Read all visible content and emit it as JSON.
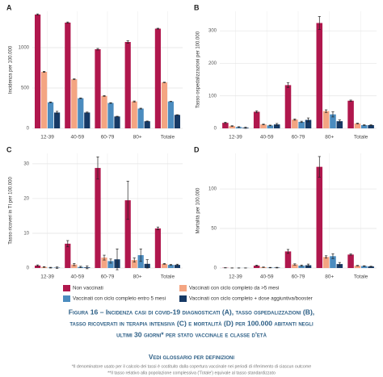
{
  "chart_data": [
    {
      "type": "bar",
      "title": "A",
      "y_label": "Incidenza per 100.000",
      "categories": [
        "12-39",
        "40-59",
        "60-79",
        "80+",
        "Totale"
      ],
      "ylim": [
        0,
        1450
      ],
      "yticks": [
        0,
        500,
        1000
      ],
      "grid": true,
      "series": [
        {
          "name": "Non vaccinati",
          "color": "#b0174d",
          "values": [
            1410,
            1310,
            980,
            1070,
            1235
          ],
          "errors": [
            8,
            8,
            10,
            15,
            5
          ]
        },
        {
          "name": "Vaccinati con ciclo completo da >5 mesi",
          "color": "#f4a582",
          "values": [
            700,
            608,
            402,
            333,
            569
          ],
          "errors": [
            6,
            5,
            5,
            6,
            3
          ]
        },
        {
          "name": "Vaccinati con ciclo completo entro 5 mesi",
          "color": "#4b8cbf",
          "values": [
            323,
            373,
            314,
            245,
            333
          ],
          "errors": [
            4,
            4,
            4,
            5,
            2
          ]
        },
        {
          "name": "Vaccinati con ciclo completo + dose aggiuntiva/booster",
          "color": "#163a66",
          "values": [
            196,
            196,
            147,
            88,
            167
          ],
          "errors": [
            15,
            6,
            3,
            3,
            2
          ]
        }
      ]
    },
    {
      "type": "bar",
      "title": "B",
      "y_label": "Tasso ospedalizzazioni per 100.000",
      "categories": [
        "12-39",
        "40-59",
        "60-79",
        "80+",
        "Totale"
      ],
      "ylim": [
        0,
        360
      ],
      "yticks": [
        0,
        100,
        200,
        300
      ],
      "grid": true,
      "series": [
        {
          "name": "Non vaccinati",
          "color": "#b0174d",
          "values": [
            17,
            51,
            133,
            324,
            85
          ],
          "errors": [
            2,
            3,
            7,
            20,
            2
          ]
        },
        {
          "name": "Vaccinati con ciclo completo da >5 mesi",
          "color": "#f4a582",
          "values": [
            7,
            12,
            27,
            53,
            15
          ],
          "errors": [
            1,
            1,
            2,
            4,
            1
          ]
        },
        {
          "name": "Vaccinati con ciclo completo entro 5 mesi",
          "color": "#4b8cbf",
          "values": [
            4,
            9,
            20,
            43,
            10
          ],
          "errors": [
            1,
            1,
            2,
            8,
            1
          ]
        },
        {
          "name": "Vaccinati con ciclo completo + dose aggiuntiva/booster",
          "color": "#163a66",
          "values": [
            2,
            12,
            26,
            22,
            10
          ],
          "errors": [
            2,
            3,
            6,
            4,
            1
          ]
        }
      ]
    },
    {
      "type": "bar",
      "title": "C",
      "y_label": "Tasso ricoveri in TI per 100.000",
      "categories": [
        "12-39",
        "40-59",
        "60-79",
        "80+",
        "Totale"
      ],
      "ylim": [
        0,
        33
      ],
      "yticks": [
        0,
        10,
        20,
        30
      ],
      "grid": true,
      "series": [
        {
          "name": "Non vaccinati",
          "color": "#b0174d",
          "values": [
            0.7,
            7,
            28.8,
            19.5,
            11.4
          ],
          "errors": [
            0.2,
            0.9,
            3.2,
            5.5,
            0.4
          ]
        },
        {
          "name": "Vaccinati con ciclo completo da >5 mesi",
          "color": "#f4a582",
          "values": [
            0.3,
            1,
            3,
            2.3,
            1.2
          ],
          "errors": [
            0.1,
            0.3,
            0.7,
            0.6,
            0.1
          ]
        },
        {
          "name": "Vaccinati con ciclo completo entro 5 mesi",
          "color": "#4b8cbf",
          "values": [
            0.1,
            0.3,
            2,
            3.7,
            0.9
          ],
          "errors": [
            0.1,
            0.2,
            0.6,
            1.8,
            0.1
          ]
        },
        {
          "name": "Vaccinati con ciclo completo + dose aggiuntiva/booster",
          "color": "#163a66",
          "values": [
            0.1,
            0.2,
            2.5,
            1.2,
            0.9
          ],
          "errors": [
            0.2,
            0.4,
            3,
            1.2,
            0.2
          ]
        }
      ]
    },
    {
      "type": "bar",
      "title": "D",
      "y_label": "Mortalità per 100.000",
      "categories": [
        "12-39",
        "40-59",
        "60-79",
        "80+",
        "Totale"
      ],
      "ylim": [
        0,
        145
      ],
      "yticks": [
        0,
        50,
        100
      ],
      "grid": true,
      "series": [
        {
          "name": "Non vaccinati",
          "color": "#b0174d",
          "values": [
            0.3,
            3,
            21,
            128,
            17
          ],
          "errors": [
            0.2,
            0.6,
            2.5,
            13,
            0.8
          ]
        },
        {
          "name": "Vaccinati con ciclo completo da >5 mesi",
          "color": "#f4a582",
          "values": [
            0.1,
            1,
            4.5,
            14,
            3
          ],
          "errors": [
            0.1,
            0.3,
            0.8,
            1.5,
            0.3
          ]
        },
        {
          "name": "Vaccinati con ciclo completo entro 5 mesi",
          "color": "#4b8cbf",
          "values": [
            0.1,
            0.5,
            3,
            15,
            2.5
          ],
          "errors": [
            0.1,
            0.3,
            0.8,
            3,
            0.3
          ]
        },
        {
          "name": "Vaccinati con ciclo completo + dose aggiuntiva/booster",
          "color": "#163a66",
          "values": [
            0.1,
            0.5,
            3.5,
            5,
            2
          ],
          "errors": [
            0.1,
            0.4,
            1.5,
            2,
            0.3
          ]
        }
      ]
    }
  ],
  "caption": {
    "title_lines": [
      "Figura 16 – Incidenza casi di covid-19 diagnosticati (A), tasso ospedalizzazioni (B),",
      "tasso ricoverati in terapia intensiva (C) e mortalità (D) per 100.000 abitanti negli",
      "ultimi 30 giorni* per stato vaccinale e classe d'età"
    ],
    "glossary": "Vedi glossario per definizioni",
    "footnotes": [
      "*Il denominatore usato per il calcolo dei tassi è costituito dalla copertura vaccinale nei periodi di riferimento di ciascun outcome",
      "**Il tasso relativo alla popolazione complessiva ('Totale') equivale al tasso standardizzato"
    ]
  }
}
